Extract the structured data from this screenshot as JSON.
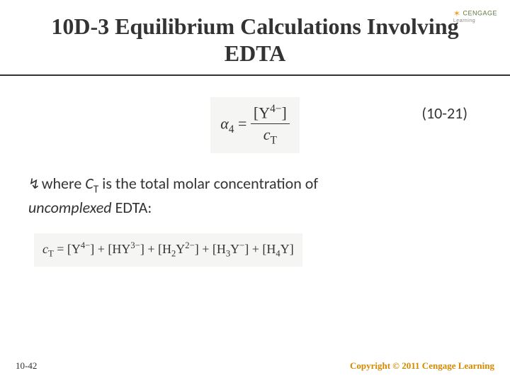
{
  "header": {
    "title": "10D-3 Equilibrium Calculations Involving EDTA",
    "logo_brand": "CENGAGE",
    "logo_sub": "Learning"
  },
  "formula1": {
    "lhs_var": "α",
    "lhs_sub": "4",
    "eq": " = ",
    "num_open": "[Y",
    "num_sup": "4−",
    "num_close": "]",
    "den_var": "c",
    "den_sub": "T",
    "bg_color": "#f5f5f3",
    "font_color": "#333333"
  },
  "eq_number": "(10-21)",
  "body": {
    "bullet": "↯",
    "pre": "where ",
    "ct_var": "C",
    "ct_sub": "T",
    "mid": " is the total molar concentration of ",
    "uncomplexed": "uncomplexed",
    "tail": " EDTA:"
  },
  "formula2": {
    "lhs_var": "c",
    "lhs_sub": "T",
    "eq": " = ",
    "terms": [
      {
        "open": "[Y",
        "sup": "4−",
        "close": "]"
      },
      {
        "open": "[HY",
        "sup": "3−",
        "close": "]"
      },
      {
        "open": "[H",
        "sub2": "2",
        "mid": "Y",
        "sup": "2−",
        "close": "]"
      },
      {
        "open": "[H",
        "sub2": "3",
        "mid": "Y",
        "sup": "−",
        "close": "]"
      },
      {
        "open": "[H",
        "sub2": "4",
        "mid": "Y",
        "sup": "",
        "close": "]"
      }
    ],
    "plus": " + ",
    "bg_color": "#f5f5f3"
  },
  "footer": {
    "left": "10-42",
    "right": "Copyright © 2011 Cengage Learning"
  },
  "colors": {
    "title": "#333333",
    "rule": "#333333",
    "footer_right": "#d48a00",
    "logo": "#5a7a3a"
  }
}
